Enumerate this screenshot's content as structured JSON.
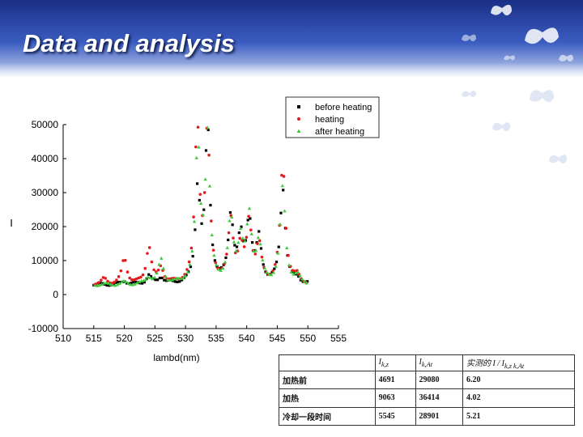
{
  "slide": {
    "title": "Data and analysis"
  },
  "chart_data": {
    "type": "scatter",
    "xlabel": "lambd(nm)",
    "ylabel": "I",
    "xlim": [
      510,
      555
    ],
    "ylim": [
      -10000,
      50000
    ],
    "xticks": [
      510,
      515,
      520,
      525,
      530,
      535,
      540,
      545,
      550,
      555
    ],
    "yticks": [
      -10000,
      0,
      10000,
      20000,
      30000,
      40000,
      50000
    ],
    "legend_position": "top-right",
    "legend": [
      "before heating",
      "heating",
      "after heating"
    ],
    "series": [
      {
        "name": "before heating",
        "color": "#000000",
        "marker": "square",
        "peaks": [
          [
            517,
            1500
          ],
          [
            520,
            3500
          ],
          [
            524,
            5000
          ],
          [
            526,
            4500
          ],
          [
            532,
            30000
          ],
          [
            533.6,
            48500
          ],
          [
            537.4,
            22000
          ],
          [
            539,
            15000
          ],
          [
            540.4,
            20500
          ],
          [
            542,
            15000
          ],
          [
            545.9,
            30500
          ],
          [
            548.3,
            4000
          ]
        ]
      },
      {
        "name": "heating",
        "color": "#e41a1c",
        "marker": "circle",
        "peaks": [
          [
            516.7,
            4000
          ],
          [
            520,
            10000
          ],
          [
            524,
            13500
          ],
          [
            526,
            7000
          ],
          [
            531.9,
            49500
          ],
          [
            533.6,
            47000
          ],
          [
            537.4,
            20500
          ],
          [
            539,
            12000
          ],
          [
            540.4,
            20000
          ],
          [
            542,
            13000
          ],
          [
            545.9,
            38000
          ],
          [
            548.3,
            4500
          ]
        ]
      },
      {
        "name": "after heating",
        "color": "#3ec93e",
        "marker": "triangle",
        "peaks": [
          [
            517,
            1500
          ],
          [
            520,
            3000
          ],
          [
            524,
            4500
          ],
          [
            526,
            9500
          ],
          [
            532,
            43500
          ],
          [
            533.6,
            45000
          ],
          [
            537.4,
            21000
          ],
          [
            539,
            14500
          ],
          [
            540.4,
            21500
          ],
          [
            542,
            14000
          ],
          [
            545.9,
            31000
          ],
          [
            548.3,
            4500
          ]
        ]
      }
    ]
  },
  "table": {
    "headers": [
      "",
      "I",
      "I",
      "实测的 I / I"
    ],
    "header_subs": [
      "",
      "k,z",
      "k,At",
      "k,z  k,At"
    ],
    "rows": [
      [
        "加热前",
        "4691",
        "29080",
        "6.20"
      ],
      [
        "加热",
        "9063",
        "36414",
        "4.02"
      ],
      [
        "冷却一段时间",
        "5545",
        "28901",
        "5.21"
      ]
    ]
  }
}
